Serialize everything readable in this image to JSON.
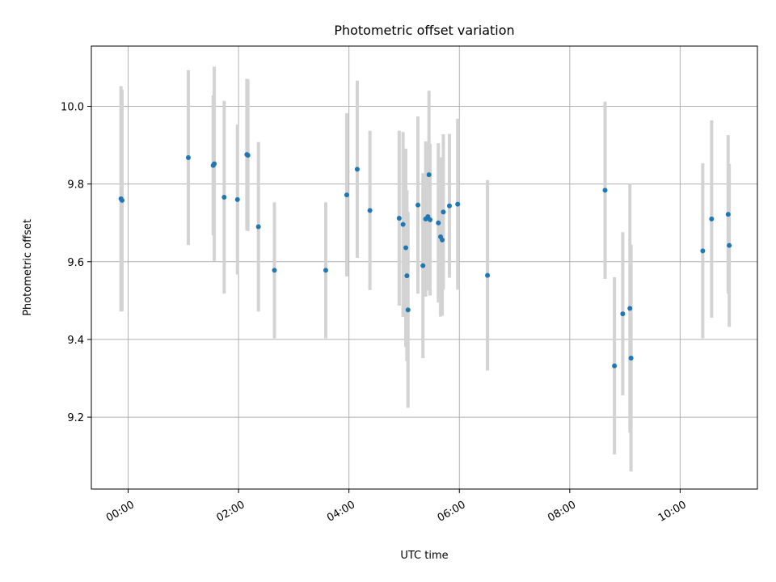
{
  "chart_data": {
    "type": "scatter",
    "title": "Photometric offset variation",
    "xlabel": "UTC time",
    "ylabel": "Photometric offset",
    "x_tick_labels": [
      "00:00",
      "02:00",
      "04:00",
      "06:00",
      "08:00",
      "10:00"
    ],
    "x_tick_hours": [
      0,
      2,
      4,
      6,
      8,
      10
    ],
    "y_ticks": [
      9.2,
      9.4,
      9.6,
      9.8,
      10.0
    ],
    "y_tick_labels": [
      "9.2",
      "9.4",
      "9.6",
      "9.8",
      "10.0"
    ],
    "xlim_hours": [
      -0.667,
      11.4
    ],
    "ylim": [
      9.015,
      10.155
    ],
    "grid": true,
    "x_unit": "hours UTC",
    "colors": {
      "marker": "#1f77b4",
      "errorbar": "#d3d3d3",
      "grid": "#b0b0b0"
    },
    "points": [
      {
        "t": -0.13,
        "y": 9.762,
        "err": 0.29
      },
      {
        "t": -0.11,
        "y": 9.758,
        "err": 0.285
      },
      {
        "t": 1.09,
        "y": 9.868,
        "err": 0.225
      },
      {
        "t": 1.54,
        "y": 9.848,
        "err": 0.18
      },
      {
        "t": 1.56,
        "y": 9.852,
        "err": 0.25
      },
      {
        "t": 1.74,
        "y": 9.766,
        "err": 0.248
      },
      {
        "t": 1.98,
        "y": 9.76,
        "err": 0.193
      },
      {
        "t": 2.15,
        "y": 9.876,
        "err": 0.195
      },
      {
        "t": 2.17,
        "y": 9.874,
        "err": 0.195
      },
      {
        "t": 2.36,
        "y": 9.69,
        "err": 0.218
      },
      {
        "t": 2.65,
        "y": 9.578,
        "err": 0.175
      },
      {
        "t": 3.58,
        "y": 9.578,
        "err": 0.175
      },
      {
        "t": 3.96,
        "y": 9.772,
        "err": 0.21
      },
      {
        "t": 4.15,
        "y": 9.838,
        "err": 0.228
      },
      {
        "t": 4.38,
        "y": 9.732,
        "err": 0.205
      },
      {
        "t": 4.91,
        "y": 9.712,
        "err": 0.225
      },
      {
        "t": 4.98,
        "y": 9.696,
        "err": 0.238
      },
      {
        "t": 5.03,
        "y": 9.636,
        "err": 0.255
      },
      {
        "t": 5.05,
        "y": 9.564,
        "err": 0.22
      },
      {
        "t": 5.07,
        "y": 9.476,
        "err": 0.252
      },
      {
        "t": 5.25,
        "y": 9.746,
        "err": 0.228
      },
      {
        "t": 5.34,
        "y": 9.59,
        "err": 0.238
      },
      {
        "t": 5.39,
        "y": 9.71,
        "err": 0.2
      },
      {
        "t": 5.43,
        "y": 9.716,
        "err": 0.19
      },
      {
        "t": 5.45,
        "y": 9.824,
        "err": 0.216
      },
      {
        "t": 5.47,
        "y": 9.708,
        "err": 0.195
      },
      {
        "t": 5.62,
        "y": 9.7,
        "err": 0.205
      },
      {
        "t": 5.66,
        "y": 9.664,
        "err": 0.205
      },
      {
        "t": 5.69,
        "y": 9.656,
        "err": 0.195
      },
      {
        "t": 5.71,
        "y": 9.728,
        "err": 0.2
      },
      {
        "t": 5.82,
        "y": 9.744,
        "err": 0.185
      },
      {
        "t": 5.97,
        "y": 9.748,
        "err": 0.22
      },
      {
        "t": 6.51,
        "y": 9.565,
        "err": 0.245
      },
      {
        "t": 8.64,
        "y": 9.784,
        "err": 0.228
      },
      {
        "t": 8.81,
        "y": 9.332,
        "err": 0.228
      },
      {
        "t": 8.96,
        "y": 9.466,
        "err": 0.21
      },
      {
        "t": 9.09,
        "y": 9.48,
        "err": 0.32
      },
      {
        "t": 9.11,
        "y": 9.352,
        "err": 0.292
      },
      {
        "t": 10.41,
        "y": 9.628,
        "err": 0.225
      },
      {
        "t": 10.57,
        "y": 9.71,
        "err": 0.254
      },
      {
        "t": 10.87,
        "y": 9.722,
        "err": 0.204
      },
      {
        "t": 10.89,
        "y": 9.642,
        "err": 0.21
      }
    ]
  }
}
